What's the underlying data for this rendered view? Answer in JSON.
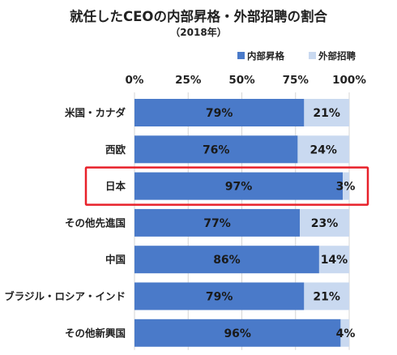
{
  "chart_data": {
    "type": "bar",
    "orientation": "horizontal",
    "stacked": true,
    "title": "就任したCEOの内部昇格・外部招聘の割合",
    "subtitle": "（2018年）",
    "categories": [
      "米国・カナダ",
      "西欧",
      "日本",
      "その他先進国",
      "中国",
      "ブラジル・ロシア・インド",
      "その他新興国"
    ],
    "series": [
      {
        "name": "内部昇格",
        "values": [
          79,
          76,
          97,
          77,
          86,
          79,
          96
        ],
        "color": "#4a7ac9"
      },
      {
        "name": "外部招聘",
        "values": [
          21,
          24,
          3,
          23,
          14,
          21,
          4
        ],
        "color": "#c9d9f0"
      }
    ],
    "data_labels": [
      [
        "79%",
        "76%",
        "97%",
        "77%",
        "86%",
        "79%",
        "96%"
      ],
      [
        "21%",
        "24%",
        "3%",
        "23%",
        "14%",
        "21%",
        "4%"
      ]
    ],
    "tick_labels": [
      "0%",
      "25%",
      "50%",
      "75%",
      "100%"
    ],
    "xlim": [
      0,
      100
    ],
    "x_axis_position": "top",
    "legend_position": "top-right",
    "grid": true,
    "highlight_category": "日本",
    "highlight_color": "#e8212a"
  }
}
